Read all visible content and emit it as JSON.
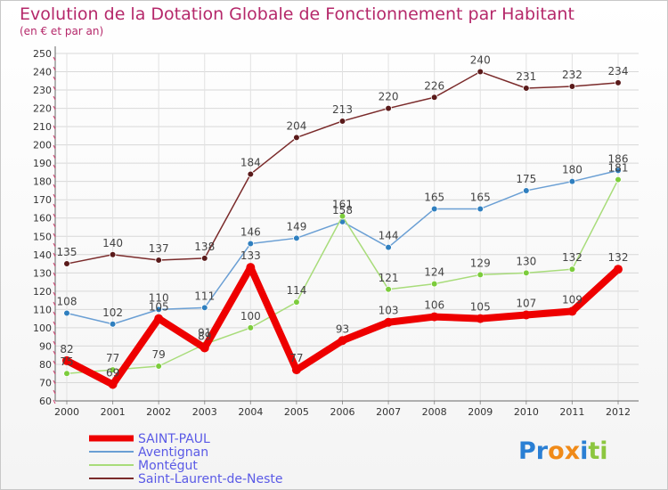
{
  "chart_data": {
    "type": "line",
    "title": "Evolution de la Dotation Globale de Fonctionnement par Habitant",
    "subtitle": "(en € et par an)",
    "xlabel": "",
    "ylabel": "",
    "ylim": [
      60,
      250
    ],
    "y_ticks": [
      60,
      70,
      80,
      90,
      100,
      110,
      120,
      130,
      140,
      150,
      160,
      170,
      180,
      190,
      200,
      210,
      220,
      230,
      240,
      250
    ],
    "categories": [
      "2000",
      "2001",
      "2002",
      "2003",
      "2004",
      "2005",
      "2006",
      "2007",
      "2008",
      "2009",
      "2010",
      "2011",
      "2012"
    ],
    "series": [
      {
        "name": "Saint-Laurent-de-Neste",
        "color": "#7a2a2a",
        "dot": "#5a1a1a",
        "values": [
          135,
          140,
          137,
          138,
          184,
          204,
          213,
          220,
          226,
          240,
          231,
          232,
          234
        ]
      },
      {
        "name": "Aventignan",
        "color": "#6a9fd4",
        "dot": "#2f7fbf",
        "values": [
          108,
          102,
          110,
          111,
          146,
          149,
          158,
          144,
          165,
          165,
          175,
          180,
          186
        ]
      },
      {
        "name": "Montégut",
        "color": "#a8dc7a",
        "dot": "#7ccc3c",
        "values": [
          75,
          77,
          79,
          91,
          100,
          114,
          161,
          121,
          124,
          129,
          130,
          132,
          181
        ]
      },
      {
        "name": "SAINT-PAUL",
        "color": "#ee0000",
        "dot": "#ee0000",
        "values": [
          82,
          69,
          105,
          89,
          133,
          77,
          93,
          103,
          106,
          105,
          107,
          109,
          132
        ]
      }
    ],
    "data_labels": [
      {
        "series": "Saint-Laurent-de-Neste",
        "texts": [
          "135",
          "140",
          "137",
          "138",
          "184",
          "204",
          "213",
          "220",
          "226",
          "240",
          "231",
          "232",
          "234"
        ]
      },
      {
        "series": "Aventignan",
        "texts": [
          "108",
          "102",
          "110",
          "111",
          "146",
          "149",
          "158",
          "144",
          "165",
          "165",
          "175",
          "180",
          "186"
        ]
      },
      {
        "series": "Montégut",
        "texts": [
          "75",
          "77",
          "79",
          "91",
          "100",
          "114",
          "161",
          "121",
          "124",
          "129",
          "130",
          "132",
          "181"
        ]
      },
      {
        "series": "SAINT-PAUL",
        "texts": [
          "82",
          "69",
          "105",
          "89",
          "133",
          "77",
          "93",
          "103",
          "106",
          "105",
          "107",
          "109",
          "132"
        ]
      }
    ],
    "legend": [
      "SAINT-PAUL",
      "Aventignan",
      "Montégut",
      "Saint-Laurent-de-Neste"
    ],
    "legend_position": "bottom-left",
    "grid": true
  },
  "logo": {
    "text": "Proxiti",
    "letters": [
      "P",
      "r",
      "o",
      "x",
      "i",
      "t",
      "i"
    ],
    "colors": [
      "#2a7fd4",
      "#2a7fd4",
      "#f08a18",
      "#f08a18",
      "#2a7fd4",
      "#8cc63f",
      "#8cc63f"
    ]
  }
}
